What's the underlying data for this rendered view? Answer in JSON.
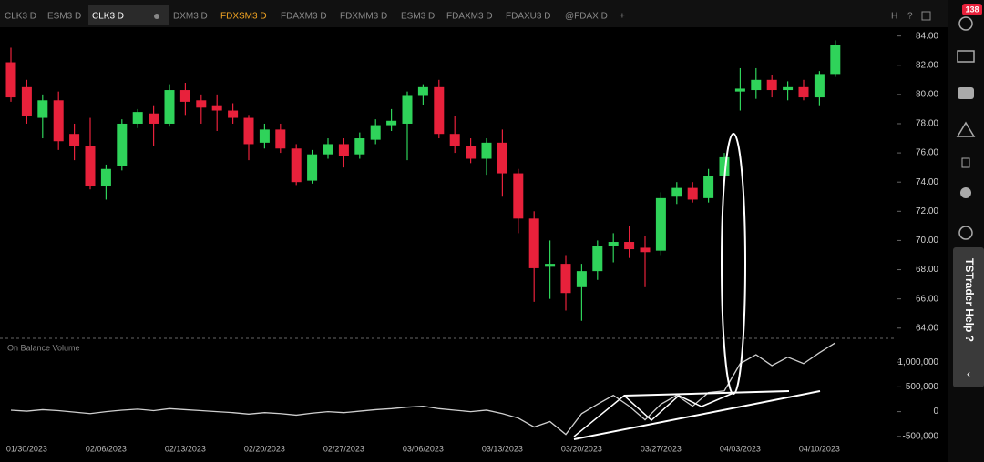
{
  "tabs": [
    "CLK3 D",
    "ESM3 D",
    "CLK3 D",
    "DXM3 D",
    "FDXSM3 D",
    "FDAXM3 D",
    "FDXMM3 D",
    "ESM3 D",
    "FDAXM3 D",
    "FDAXU3 D",
    "@FDAX D",
    "+"
  ],
  "badge": "138",
  "side_tab": "TSTrader Help ?",
  "chart_data": [
    {
      "type": "candlestick",
      "categories": [
        null,
        "01/30/2023",
        null,
        null,
        null,
        null,
        "02/06/2023",
        null,
        null,
        null,
        null,
        "02/13/2023",
        null,
        null,
        null,
        null,
        "02/20/2023",
        null,
        null,
        null,
        null,
        "02/27/2023",
        null,
        null,
        null,
        null,
        "03/06/2023",
        null,
        null,
        null,
        null,
        "03/13/2023",
        null,
        null,
        null,
        null,
        "03/20/2023",
        null,
        null,
        null,
        null,
        "03/27/2023",
        null,
        null,
        null,
        null,
        "04/03/2023",
        null,
        null,
        null,
        null,
        "04/10/2023",
        null
      ],
      "open": [
        82.2,
        80.5,
        78.4,
        79.6,
        77.3,
        76.5,
        73.7,
        75.1,
        78,
        78.7,
        78,
        80.3,
        79.6,
        79.2,
        78.9,
        78.4,
        76.7,
        77.6,
        76.3,
        74.1,
        75.9,
        76.6,
        75.9,
        76.9,
        77.9,
        78,
        79.9,
        80.5,
        77.3,
        76.5,
        75.6,
        76.7,
        74.6,
        71.5,
        68.2,
        68.4,
        66.8,
        67.9,
        69.6,
        69.9,
        69.5,
        69.3,
        73,
        73.6,
        72.9,
        74.4,
        80.2,
        80.3,
        81,
        80.3,
        80.5,
        79.8,
        81.4
      ],
      "high": [
        83.2,
        81,
        80,
        80.2,
        78,
        78.4,
        75.2,
        78.3,
        79,
        79.2,
        80.7,
        80.8,
        80,
        80,
        79.4,
        78.6,
        78,
        78,
        76.6,
        76.2,
        77,
        77,
        77.4,
        78.3,
        79,
        80.2,
        80.7,
        81,
        78.5,
        77,
        77,
        77.6,
        74.9,
        72,
        70,
        69,
        68.4,
        70,
        70.5,
        71,
        70.3,
        73.3,
        74,
        74,
        74.9,
        76,
        81.8,
        81.8,
        81.3,
        80.9,
        81,
        81.6,
        83.7
      ],
      "low": [
        79.5,
        78,
        77,
        76.2,
        75.5,
        73.5,
        72.8,
        74.8,
        77.7,
        76.5,
        77.8,
        78.6,
        78,
        77.5,
        78,
        75.5,
        76.3,
        76,
        73.8,
        73.9,
        75.6,
        75,
        75.6,
        76.6,
        77.5,
        75.5,
        79.3,
        77,
        76,
        75.3,
        74.5,
        73,
        70.5,
        65.8,
        66,
        65.2,
        64.5,
        67.3,
        68.5,
        68.8,
        66.8,
        69,
        72.5,
        72.6,
        72.6,
        74.2,
        78.9,
        79.7,
        79.8,
        79.6,
        79.6,
        79.2,
        81.2
      ],
      "close": [
        79.8,
        78.5,
        79.6,
        76.8,
        76.5,
        73.7,
        74.9,
        78,
        78.8,
        78,
        80.3,
        79.5,
        79.1,
        78.9,
        78.4,
        76.6,
        77.6,
        76.3,
        74,
        75.9,
        76.6,
        75.8,
        77,
        77.9,
        78.2,
        79.9,
        80.5,
        77.3,
        76.5,
        75.6,
        76.7,
        74.6,
        71.5,
        68.1,
        68.4,
        66.4,
        67.9,
        69.6,
        69.9,
        69.4,
        69.2,
        72.9,
        73.6,
        72.8,
        74.4,
        75.7,
        80.4,
        81,
        80.3,
        80.5,
        79.8,
        81.4,
        83.4
      ],
      "up_color": "#2fd35a",
      "down_color": "#e8213b",
      "ylim": [
        63.3,
        84.6
      ],
      "yticks": [
        {
          "value": 64,
          "label": "64.00"
        },
        {
          "value": 66,
          "label": "66.00"
        },
        {
          "value": 68,
          "label": "68.00"
        },
        {
          "value": 70,
          "label": "70.00"
        },
        {
          "value": 72,
          "label": "72.00"
        },
        {
          "value": 74,
          "label": "74.00"
        },
        {
          "value": 76,
          "label": "76.00"
        },
        {
          "value": 78,
          "label": "78.00"
        },
        {
          "value": 80,
          "label": "80.00"
        },
        {
          "value": 82,
          "label": "82.00"
        },
        {
          "value": 84,
          "label": "84.00"
        }
      ]
    },
    {
      "type": "line",
      "title": "On Balance Volume",
      "color": "#cfcfcf",
      "values": [
        30000,
        10000,
        40000,
        20000,
        -10000,
        -40000,
        0,
        30000,
        50000,
        20000,
        60000,
        40000,
        20000,
        0,
        -20000,
        -50000,
        -20000,
        -40000,
        -70000,
        -30000,
        0,
        -20000,
        10000,
        40000,
        60000,
        90000,
        110000,
        60000,
        30000,
        0,
        30000,
        -40000,
        -130000,
        -310000,
        -200000,
        -460000,
        -40000,
        150000,
        330000,
        110000,
        -165000,
        150000,
        330000,
        110000,
        385000,
        420000,
        970000,
        1150000,
        930000,
        1100000,
        970000,
        1190000,
        1390000
      ],
      "ylim": [
        -650000,
        1480000
      ],
      "yticks": [
        {
          "value": -500000,
          "label": "-500,000"
        },
        0,
        {
          "value": 500000,
          "label": "500,000"
        },
        {
          "value": 1000000,
          "label": "1,000,000"
        }
      ]
    }
  ]
}
